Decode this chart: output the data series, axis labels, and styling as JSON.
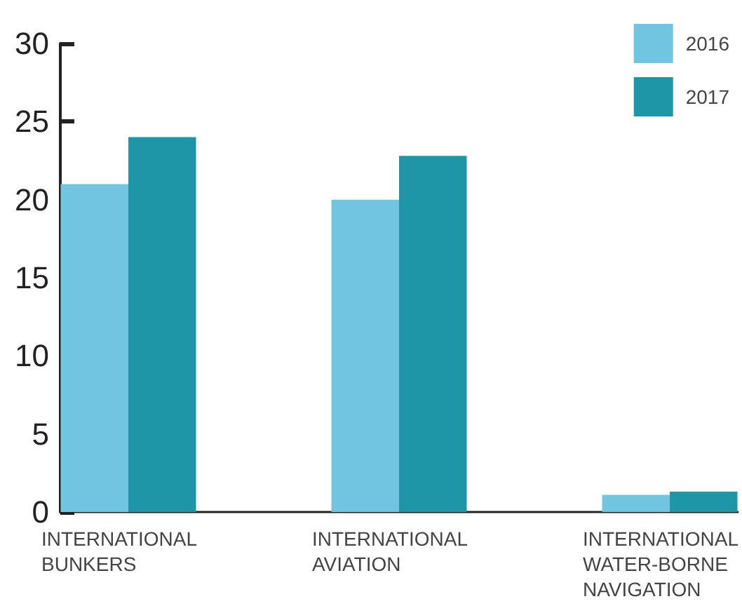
{
  "chart_data": {
    "type": "bar",
    "categories": [
      "INTERNATIONAL BUNKERS",
      "INTERNATIONAL AVIATION",
      "INTERNATIONAL WATER-BORNE NAVIGATION"
    ],
    "series": [
      {
        "name": "2016",
        "color": "#72c5e1",
        "values": [
          21,
          20,
          1.1
        ]
      },
      {
        "name": "2017",
        "color": "#1e96a7",
        "values": [
          24,
          22.8,
          1.3
        ]
      }
    ],
    "ylim": [
      0,
      30
    ],
    "yticks": [
      0,
      5,
      10,
      15,
      20,
      25,
      30
    ],
    "legend": "top right"
  }
}
